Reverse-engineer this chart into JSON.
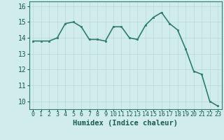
{
  "xlabel": "Humidex (Indice chaleur)",
  "x": [
    0,
    1,
    2,
    3,
    4,
    5,
    6,
    7,
    8,
    9,
    10,
    11,
    12,
    13,
    14,
    15,
    16,
    17,
    18,
    19,
    20,
    21,
    22,
    23
  ],
  "y": [
    13.8,
    13.8,
    13.8,
    14.0,
    14.9,
    15.0,
    14.7,
    13.9,
    13.9,
    13.8,
    14.7,
    14.7,
    14.0,
    13.9,
    14.8,
    15.3,
    15.6,
    14.9,
    14.5,
    13.3,
    11.9,
    11.7,
    10.0,
    9.7
  ],
  "line_color": "#2e7d6e",
  "marker": "s",
  "marker_size": 2.0,
  "bg_color": "#d0eceb",
  "grid_color": "#b8dbd8",
  "text_color": "#1a5c52",
  "axis_color": "#2e7d6e",
  "ylim": [
    9.5,
    16.3
  ],
  "yticks": [
    10,
    11,
    12,
    13,
    14,
    15,
    16
  ],
  "xlim": [
    -0.5,
    23.5
  ],
  "xticks": [
    0,
    1,
    2,
    3,
    4,
    5,
    6,
    7,
    8,
    9,
    10,
    11,
    12,
    13,
    14,
    15,
    16,
    17,
    18,
    19,
    20,
    21,
    22,
    23
  ],
  "xlabel_fontsize": 7.5,
  "ytick_fontsize": 7,
  "xtick_fontsize": 6.0,
  "linewidth": 1.2
}
